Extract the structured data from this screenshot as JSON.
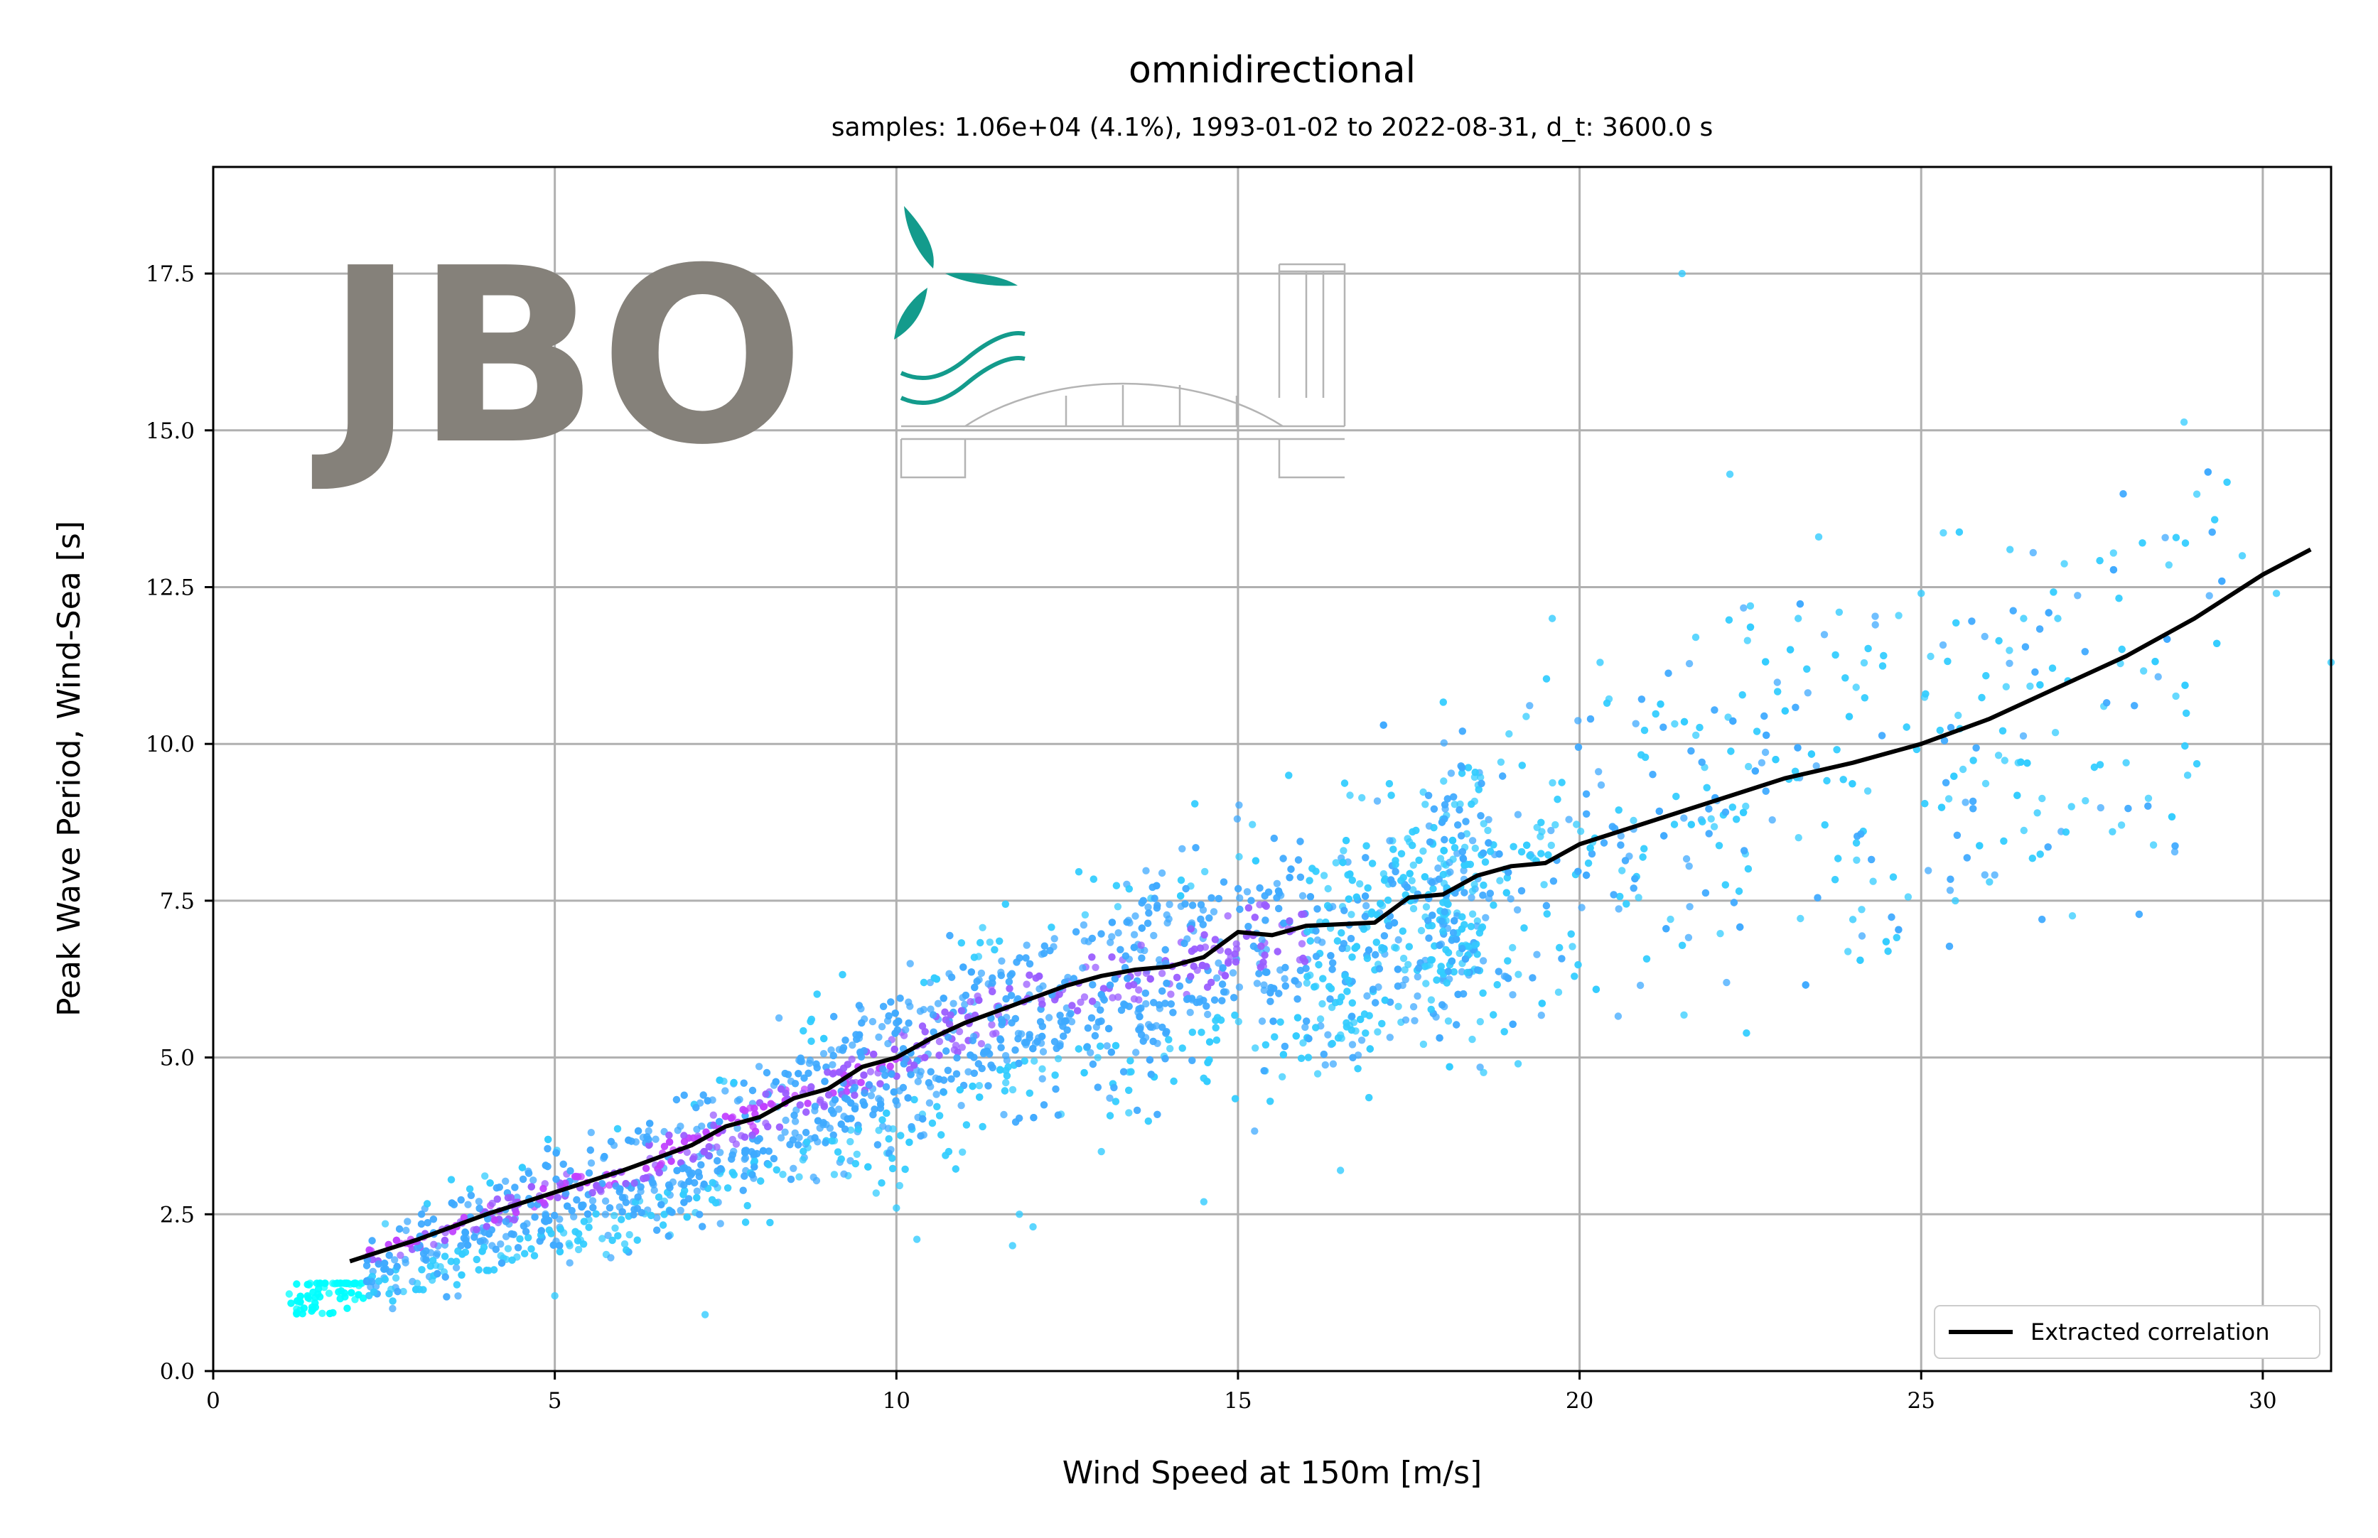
{
  "chart_data": {
    "type": "scatter",
    "title": "omnidirectional",
    "subtitle": "samples: 1.06e+04 (4.1%), 1993-01-02 to 2022-08-31, d_t: 3600.0 s",
    "xlabel": "Wind Speed at 150m [m/s]",
    "ylabel": "Peak Wave Period, Wind-Sea [s]",
    "xlim": [
      0,
      31
    ],
    "ylim": [
      0,
      19.2
    ],
    "xticks": [
      0,
      5,
      10,
      15,
      20,
      25,
      30
    ],
    "xtick_labels": [
      "0",
      "5",
      "10",
      "15",
      "20",
      "25",
      "30"
    ],
    "yticks": [
      0.0,
      2.5,
      5.0,
      7.5,
      10.0,
      12.5,
      15.0,
      17.5
    ],
    "ytick_labels": [
      "0.0",
      "2.5",
      "5.0",
      "7.5",
      "10.0",
      "12.5",
      "15.0",
      "17.5"
    ],
    "grid": true,
    "legend_position": "bottom-right",
    "series": [
      {
        "name": "Extracted correlation",
        "kind": "line",
        "color": "#000000",
        "x": [
          2.0,
          3.0,
          4.0,
          5.0,
          6.0,
          7.0,
          7.5,
          8.0,
          8.5,
          9.0,
          9.5,
          10.0,
          10.5,
          11.0,
          11.5,
          12.0,
          12.5,
          13.0,
          13.5,
          14.0,
          14.5,
          15.0,
          15.5,
          16.0,
          17.0,
          17.5,
          18.0,
          18.5,
          19.0,
          19.5,
          20.0,
          21.0,
          22.0,
          23.0,
          24.0,
          25.0,
          26.0,
          27.0,
          28.0,
          29.0,
          30.0,
          30.7
        ],
        "y": [
          1.75,
          2.1,
          2.5,
          2.85,
          3.2,
          3.6,
          3.9,
          4.05,
          4.35,
          4.5,
          4.85,
          5.0,
          5.3,
          5.55,
          5.75,
          5.95,
          6.15,
          6.3,
          6.4,
          6.45,
          6.6,
          7.0,
          6.95,
          7.1,
          7.15,
          7.55,
          7.6,
          7.9,
          8.05,
          8.1,
          8.4,
          8.75,
          9.1,
          9.45,
          9.7,
          10.0,
          10.4,
          10.9,
          11.4,
          12.0,
          12.7,
          13.1
        ]
      },
      {
        "name": "",
        "kind": "scatter",
        "color_low": "#00ffff",
        "color_high": "#ff00ff",
        "color_mid": "#3fa9ff",
        "outliers": [
          [
            21.5,
            17.5
          ],
          [
            22.2,
            14.3
          ],
          [
            23.5,
            13.3
          ],
          [
            26.3,
            13.1
          ],
          [
            29.7,
            13.0
          ],
          [
            30.2,
            12.4
          ],
          [
            31.0,
            11.3
          ],
          [
            14.5,
            2.7
          ],
          [
            12.0,
            2.3
          ],
          [
            11.8,
            2.5
          ],
          [
            11.7,
            2.0
          ],
          [
            10.0,
            2.6
          ],
          [
            7.2,
            0.9
          ],
          [
            5.0,
            1.2
          ],
          [
            10.3,
            2.1
          ],
          [
            19.1,
            4.9
          ],
          [
            16.5,
            3.2
          ],
          [
            24.0,
            7.2
          ],
          [
            25.5,
            7.5
          ],
          [
            26.0,
            7.8
          ],
          [
            27.8,
            8.6
          ],
          [
            28.9,
            9.5
          ],
          [
            27.2,
            9.0
          ],
          [
            28.0,
            9.7
          ],
          [
            26.7,
            8.9
          ],
          [
            22.5,
            12.2
          ],
          [
            23.2,
            12.0
          ],
          [
            23.8,
            12.1
          ],
          [
            25.0,
            12.4
          ],
          [
            26.5,
            12.0
          ],
          [
            27.0,
            12.0
          ],
          [
            19.6,
            12.0
          ],
          [
            20.3,
            11.3
          ],
          [
            21.7,
            11.7
          ],
          [
            13.0,
            3.5
          ]
        ]
      }
    ]
  },
  "logo": {
    "wordmark": "JBO",
    "wordmark_color": "#85817a",
    "accent_color": "#139b8c",
    "line_color": "#b4b4b4"
  }
}
